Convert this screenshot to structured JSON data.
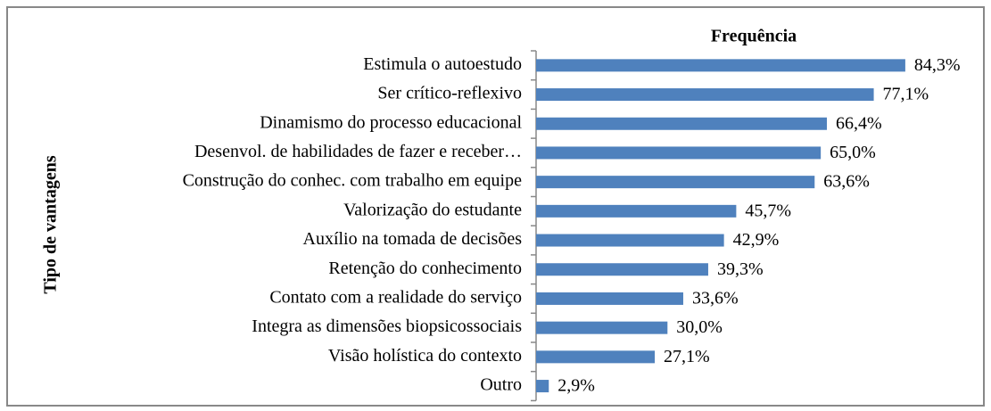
{
  "chart_data": {
    "type": "bar",
    "orientation": "horizontal",
    "title": "Frequência",
    "y_label": "Tipo de vantagens",
    "categories": [
      "Estimula o autoestudo",
      "Ser crítico-reflexivo",
      "Dinamismo do processo educacional",
      "Desenvol. de habilidades de fazer e receber…",
      "Construção do conhec. com trabalho em equipe",
      "Valorização do estudante",
      "Auxílio na tomada de decisões",
      "Retenção do conhecimento",
      "Contato com a realidade do serviço",
      "Integra as dimensões biopsicossociais",
      "Visão holística do contexto",
      "Outro"
    ],
    "values": [
      84.3,
      77.1,
      66.4,
      65.0,
      63.6,
      45.7,
      42.9,
      39.3,
      33.6,
      30.0,
      27.1,
      2.9
    ],
    "value_labels": [
      "84,3%",
      "77,1%",
      "66,4%",
      "65,0%",
      "63,6%",
      "45,7%",
      "42,9%",
      "39,3%",
      "33,6%",
      "30,0%",
      "27,1%",
      "2,9%"
    ],
    "color": "#4f81bd",
    "xlim": [
      0,
      100
    ]
  }
}
